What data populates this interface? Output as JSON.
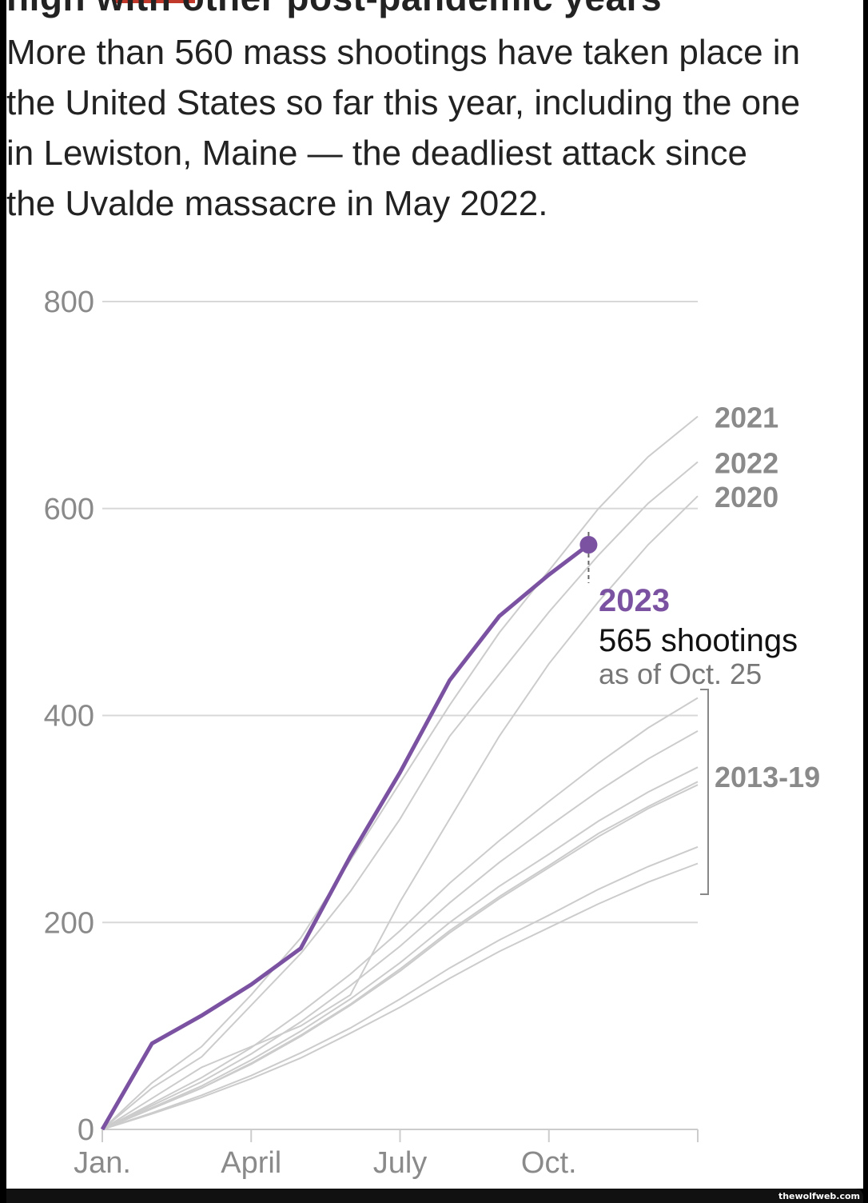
{
  "title": "high with other post-pandemic years",
  "subtitle": "More than 560 mass shootings have taken place in the United States so far this year, including the one in Lewiston, Maine — the deadliest attack since the Uvalde massacre in May 2022.",
  "watermark": "thewolfweb.com",
  "chart_data": {
    "type": "line",
    "xlabel": "",
    "ylabel": "",
    "ylim": [
      0,
      800
    ],
    "yticks": [
      "0",
      "200",
      "400",
      "600",
      "800"
    ],
    "ytick_values": [
      0,
      200,
      400,
      600,
      800
    ],
    "xticks": [
      "Jan.",
      "April",
      "July",
      "Oct."
    ],
    "xtick_months": [
      0,
      3,
      6,
      9
    ],
    "xlim_months": [
      0,
      12
    ],
    "grid": true,
    "colors": {
      "highlight": "#7b52a1",
      "other": "#cccccc",
      "label": "#8a8a8a"
    },
    "highlight": {
      "name": "2023",
      "value_label": "565 shootings",
      "date_label": "as of Oct. 25",
      "x": [
        0,
        1,
        2,
        3,
        4,
        5,
        6,
        7,
        8,
        9,
        9.8
      ],
      "y": [
        0,
        83,
        110,
        140,
        175,
        264,
        345,
        434,
        496,
        536,
        565
      ]
    },
    "series": [
      {
        "name": "2021",
        "y": [
          0,
          45,
          80,
          130,
          185,
          260,
          335,
          410,
          480,
          540,
          600,
          650,
          689
        ]
      },
      {
        "name": "2022",
        "y": [
          0,
          40,
          70,
          120,
          170,
          230,
          300,
          380,
          440,
          500,
          555,
          605,
          645
        ]
      },
      {
        "name": "2020",
        "y": [
          0,
          30,
          60,
          80,
          100,
          130,
          220,
          300,
          380,
          450,
          510,
          565,
          612
        ]
      },
      {
        "y": [
          0,
          25,
          50,
          79,
          113,
          150,
          192,
          238,
          279,
          317,
          354,
          388,
          417
        ]
      },
      {
        "y": [
          0,
          23,
          46,
          73,
          104,
          139,
          177,
          219,
          258,
          293,
          327,
          358,
          385
        ]
      },
      {
        "y": [
          0,
          21,
          42,
          67,
          95,
          126,
          161,
          200,
          235,
          266,
          298,
          326,
          350
        ]
      },
      {
        "y": [
          0,
          20,
          40,
          64,
          91,
          121,
          155,
          192,
          225,
          255,
          286,
          312,
          336
        ]
      },
      {
        "y": [
          0,
          20,
          40,
          63,
          90,
          120,
          153,
          190,
          223,
          253,
          283,
          310,
          333
        ]
      },
      {
        "y": [
          0,
          16,
          33,
          52,
          74,
          98,
          126,
          156,
          183,
          207,
          232,
          254,
          273
        ]
      },
      {
        "y": [
          0,
          15,
          31,
          49,
          69,
          93,
          118,
          146,
          172,
          195,
          218,
          239,
          257
        ]
      }
    ],
    "group_label": "2013-19"
  }
}
